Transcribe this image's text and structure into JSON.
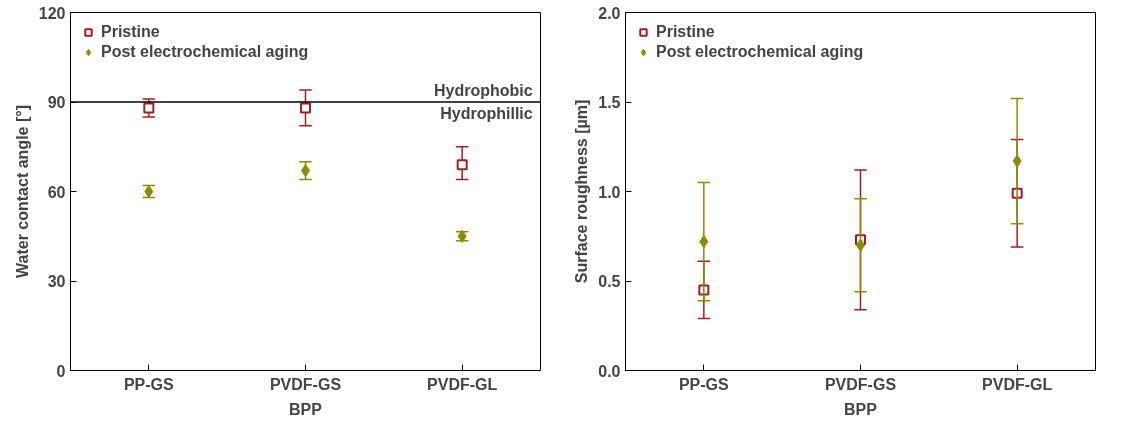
{
  "chart_data": [
    {
      "type": "scatter",
      "xlabel": "BPP",
      "ylabel": "Water contact angle [°]",
      "categories": [
        "PP-GS",
        "PVDF-GS",
        "PVDF-GL"
      ],
      "ylim": [
        0,
        120
      ],
      "yticks": [
        0,
        30,
        60,
        90,
        120
      ],
      "legend": "top left",
      "grid": false,
      "series": [
        {
          "name": "Pristine",
          "color": "#a31f1f",
          "marker": "square",
          "values": [
            88,
            88,
            69
          ],
          "errors": [
            [
              85,
              91
            ],
            [
              82,
              94
            ],
            [
              64,
              75
            ]
          ]
        },
        {
          "name": "Post electrochemical aging",
          "color": "#8c8c00",
          "marker": "diamond",
          "values": [
            60,
            67,
            45
          ],
          "errors": [
            [
              58,
              62
            ],
            [
              64,
              70
            ],
            [
              43.5,
              46.5
            ]
          ]
        }
      ],
      "ref_lines": [
        {
          "axis": "y",
          "value": 90,
          "label": "Hydrophobic",
          "color": "#000000"
        }
      ],
      "annotations": [
        "Hydrophillic"
      ]
    },
    {
      "type": "scatter",
      "xlabel": "BPP",
      "ylabel": "Surface roughness [µm]",
      "categories": [
        "PP-GS",
        "PVDF-GS",
        "PVDF-GL"
      ],
      "ylim": [
        0,
        2.0
      ],
      "yticks": [
        {
          "value": 0,
          "label": "0.0"
        },
        0.5,
        {
          "value": 1,
          "label": "1.0"
        },
        1.5,
        {
          "value": 2,
          "label": "2.0"
        }
      ],
      "legend": "top left",
      "grid": false,
      "series": [
        {
          "name": "Pristine",
          "color": "#a31f1f",
          "marker": "square",
          "values": [
            0.45,
            0.73,
            0.99
          ],
          "errors": [
            [
              0.29,
              0.61
            ],
            [
              0.34,
              1.12
            ],
            [
              0.69,
              1.29
            ]
          ]
        },
        {
          "name": "Post electrochemical aging",
          "color": "#8c8c00",
          "marker": "diamond",
          "values": [
            0.72,
            0.7,
            1.17
          ],
          "errors": [
            [
              0.39,
              1.05
            ],
            [
              0.44,
              0.96
            ],
            [
              0.82,
              1.52
            ]
          ]
        }
      ]
    }
  ]
}
